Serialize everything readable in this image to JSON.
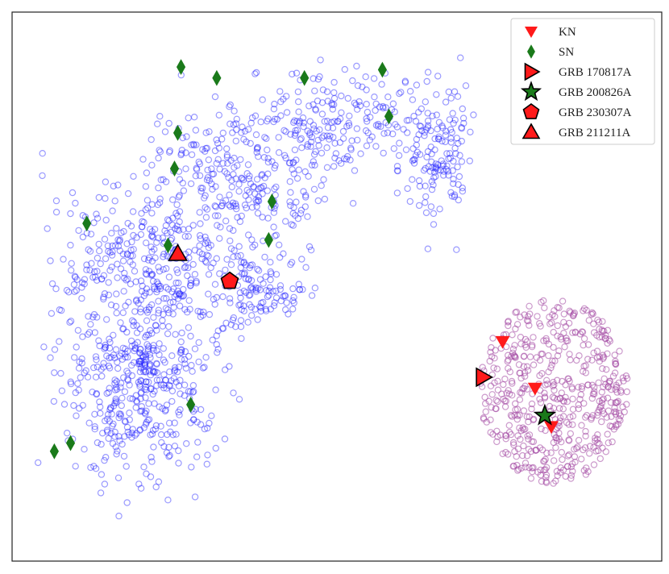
{
  "chart_data": {
    "type": "scatter",
    "title": "",
    "xlabel": "",
    "ylabel": "",
    "xlim": [
      -100,
      100
    ],
    "ylim": [
      -100,
      100
    ],
    "axes_ticks": "none",
    "grid": false,
    "legend_position": "top-right",
    "background_clusters": [
      {
        "name": "blue-cluster",
        "color": "#1f1fff",
        "marker": "hollow-circle",
        "approx_count": 2600
      },
      {
        "name": "purple-cluster",
        "color": "#a347a3",
        "marker": "hollow-circle",
        "approx_count": 500
      }
    ],
    "series": [
      {
        "name": "KN",
        "marker": "triangle-down",
        "color": "#ff1a1a",
        "edge": "none",
        "points": [
          [
            51,
            -20
          ],
          [
            61,
            -37
          ],
          [
            66,
            -51
          ]
        ]
      },
      {
        "name": "SN",
        "marker": "diamond",
        "color": "#1a7a1a",
        "edge": "none",
        "points": [
          [
            -48,
            80
          ],
          [
            -37,
            76
          ],
          [
            -10,
            76
          ],
          [
            14,
            79
          ],
          [
            16,
            62
          ],
          [
            -49,
            56
          ],
          [
            -50,
            43
          ],
          [
            -20,
            31
          ],
          [
            -21,
            17
          ],
          [
            -77,
            23
          ],
          [
            -45,
            -43
          ],
          [
            -82,
            -57
          ],
          [
            -87,
            -60
          ],
          [
            -52,
            15
          ]
        ]
      },
      {
        "name": "GRB 170817A",
        "marker": "triangle-right",
        "color": "#ff1a1a",
        "edge": "#000000",
        "points": [
          [
            45,
            -33
          ]
        ]
      },
      {
        "name": "GRB 200826A",
        "marker": "star",
        "color": "#1a7a1a",
        "edge": "#000000",
        "points": [
          [
            64,
            -47
          ]
        ]
      },
      {
        "name": "GRB 230307A",
        "marker": "pentagon",
        "color": "#ff1a1a",
        "edge": "#000000",
        "points": [
          [
            -33,
            2
          ]
        ]
      },
      {
        "name": "GRB 211211A",
        "marker": "triangle-up",
        "color": "#ff1a1a",
        "edge": "#000000",
        "points": [
          [
            -49,
            12
          ]
        ]
      }
    ]
  }
}
